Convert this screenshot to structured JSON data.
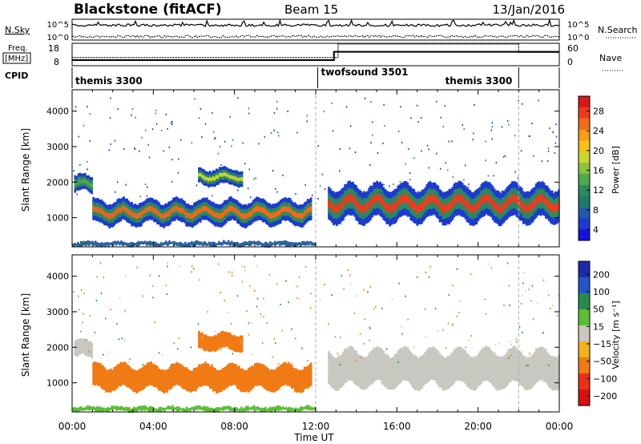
{
  "header": {
    "station": "Blackstone (fitACF)",
    "beam": "Beam 15",
    "date": "13/Jan/2016"
  },
  "top_panels": {
    "nsky_label": "N.Sky",
    "nsearch_label": "N.Search",
    "nsky_ticks": [
      "10^5",
      "10^0"
    ],
    "nsearch_ticks": [
      "10^5",
      "10^0"
    ],
    "freq_label": [
      "Freq.",
      "[MHz]"
    ],
    "freq_ticks": [
      "18",
      "8"
    ],
    "nave_label": "Nave",
    "nave_ticks": [
      "60",
      "0"
    ],
    "cpid_label": "CPID",
    "cpid_segments": [
      {
        "label": "themis 3300",
        "start": 0,
        "end": 12.1
      },
      {
        "label": "twofsound 3501",
        "start": 12.1,
        "end": 22.0
      },
      {
        "label": "themis 3300",
        "start": 22.0,
        "end": 24
      }
    ],
    "freq_series": [
      {
        "name": "freq",
        "t": [
          0,
          0.2,
          0.2,
          12.9,
          12.9,
          24
        ],
        "v": [
          10.5,
          10.5,
          10.5,
          10.5,
          14.2,
          14.2
        ]
      }
    ],
    "nave_series": [
      {
        "name": "nave",
        "t": [
          0,
          13.1,
          13.1,
          22.0,
          22.0,
          24
        ],
        "v": [
          22,
          22,
          58,
          58,
          36,
          36
        ]
      }
    ]
  },
  "chart_data": [
    {
      "type": "heatmap",
      "panel": "power",
      "ylabel": "Slant Range [km]",
      "colorbar_label": "Power [dB]",
      "colorbar_ticks": [
        "28",
        "24",
        "20",
        "16",
        "12",
        "8",
        "4"
      ],
      "colorbar_colors": [
        "#d81818",
        "#ee3c1c",
        "#f06a1a",
        "#f39c18",
        "#f5c21a",
        "#c8d632",
        "#8ac43a",
        "#50aa50",
        "#2e8a5c",
        "#1e7a6a",
        "#205aa8",
        "#1c3acc",
        "#1212e0"
      ],
      "yticks": [
        "4000",
        "3000",
        "2000",
        "1000"
      ],
      "ylim": [
        180,
        4600
      ],
      "xlim": [
        0,
        24
      ],
      "bands": [
        {
          "t_start": 0.1,
          "t_end": 1.0,
          "range_lo": 1700,
          "range_hi": 2200,
          "peak_db": 12
        },
        {
          "t_start": 1.0,
          "t_end": 11.8,
          "range_lo": 800,
          "range_hi": 1500,
          "peak_db": 24
        },
        {
          "t_start": 6.2,
          "t_end": 8.4,
          "range_lo": 1900,
          "range_hi": 2400,
          "peak_db": 16
        },
        {
          "t_start": 12.6,
          "t_end": 24.0,
          "range_lo": 900,
          "range_hi": 1900,
          "peak_db": 26
        },
        {
          "t_start": 0.0,
          "t_end": 12.0,
          "range_lo": 180,
          "range_hi": 350,
          "peak_db": 6
        }
      ]
    },
    {
      "type": "heatmap",
      "panel": "velocity",
      "ylabel": "Slant Range [km]",
      "xlabel": "Time UT",
      "colorbar_label": "Velocity [m s⁻¹]",
      "colorbar_ticks": [
        "200",
        "100",
        "50",
        "15",
        "−15",
        "−50",
        "−100",
        "−200"
      ],
      "colorbar_colors": [
        "#1c2ca8",
        "#2255c8",
        "#2a8a4c",
        "#5cbe36",
        "#c8c8c0",
        "#f2b21e",
        "#f07a14",
        "#e8301a",
        "#d81010"
      ],
      "yticks": [
        "4000",
        "3000",
        "2000",
        "1000"
      ],
      "xticks": [
        "00:00",
        "04:00",
        "08:00",
        "12:00",
        "16:00",
        "20:00",
        "00:00"
      ],
      "ylim": [
        180,
        4600
      ],
      "xlim": [
        0,
        24
      ],
      "bands": [
        {
          "t_start": 0.1,
          "t_end": 1.0,
          "range_lo": 1700,
          "range_hi": 2200,
          "velocity": 0
        },
        {
          "t_start": 1.0,
          "t_end": 11.8,
          "range_lo": 800,
          "range_hi": 1500,
          "velocity": -80
        },
        {
          "t_start": 6.2,
          "t_end": 8.4,
          "range_lo": 1900,
          "range_hi": 2400,
          "velocity": -60
        },
        {
          "t_start": 12.6,
          "t_end": 24.0,
          "range_lo": 900,
          "range_hi": 1900,
          "velocity": 0
        },
        {
          "t_start": 0.0,
          "t_end": 12.0,
          "range_lo": 180,
          "range_hi": 350,
          "velocity": 20
        }
      ]
    }
  ]
}
